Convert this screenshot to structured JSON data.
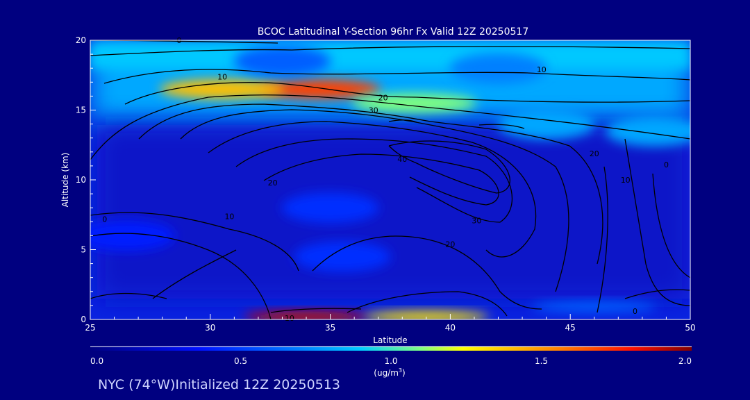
{
  "chart_data": {
    "type": "heatmap",
    "title": "BCOC Latitudinal Y-Section 96hr  Fx Valid 12Z 20250517",
    "xlabel": "Latitude",
    "ylabel": "Altitude (km)",
    "xlim": [
      25,
      50
    ],
    "ylim": [
      0,
      20
    ],
    "x_ticks": [
      "25",
      "30",
      "35",
      "40",
      "45",
      "50"
    ],
    "y_ticks": [
      "0",
      "5",
      "10",
      "15",
      "20"
    ],
    "colorbar": {
      "label": "(ug/m",
      "label_sup": "3",
      "label_end": ")",
      "range": [
        0,
        2
      ],
      "ticks": [
        "0.0",
        "0.5",
        "1.0",
        "1.5",
        "2.0"
      ]
    },
    "features": [
      {
        "lat": 34.5,
        "alt": 16.5,
        "value": 1.7
      },
      {
        "lat": 30.5,
        "alt": 16.5,
        "value": 1.4
      },
      {
        "lat": 38.5,
        "alt": 15.5,
        "value": 1.1
      },
      {
        "lat": 44.0,
        "alt": 14.0,
        "value": 0.8
      },
      {
        "lat": 48.5,
        "alt": 13.5,
        "value": 0.8
      },
      {
        "lat": 33.0,
        "alt": 18.5,
        "value": 0.6
      },
      {
        "lat": 42.0,
        "alt": 18.0,
        "value": 0.7
      },
      {
        "lat": 34.0,
        "alt": 0.2,
        "value": 1.9
      },
      {
        "lat": 39.0,
        "alt": 0.2,
        "value": 1.3
      },
      {
        "lat": 46.0,
        "alt": 0.9,
        "value": 0.6
      },
      {
        "lat": 35.0,
        "alt": 8.0,
        "value": 0.45
      },
      {
        "lat": 35.5,
        "alt": 4.5,
        "value": 0.45
      },
      {
        "lat": 26.5,
        "alt": 6.0,
        "value": 0.4
      }
    ],
    "contour_labels": [
      {
        "text": "0",
        "lat": 28.7,
        "alt": 20.0
      },
      {
        "text": "10",
        "lat": 30.5,
        "alt": 17.4
      },
      {
        "text": "10",
        "lat": 43.8,
        "alt": 17.9
      },
      {
        "text": "20",
        "lat": 37.2,
        "alt": 15.9
      },
      {
        "text": "30",
        "lat": 36.8,
        "alt": 15.0
      },
      {
        "text": "40",
        "lat": 38.0,
        "alt": 11.5
      },
      {
        "text": "20",
        "lat": 46.0,
        "alt": 11.9
      },
      {
        "text": "10",
        "lat": 47.3,
        "alt": 10.0
      },
      {
        "text": "0",
        "lat": 49.0,
        "alt": 11.1
      },
      {
        "text": "20",
        "lat": 32.6,
        "alt": 9.8
      },
      {
        "text": "10",
        "lat": 30.8,
        "alt": 7.4
      },
      {
        "text": "0",
        "lat": 25.6,
        "alt": 7.2
      },
      {
        "text": "30",
        "lat": 41.1,
        "alt": 7.1
      },
      {
        "text": "20",
        "lat": 40.0,
        "alt": 5.4
      },
      {
        "text": "0",
        "lat": 47.7,
        "alt": 0.6
      },
      {
        "text": "10",
        "lat": 33.3,
        "alt": 0.1
      }
    ]
  },
  "footer": "NYC (74°W)Initialized 12Z 20250513"
}
